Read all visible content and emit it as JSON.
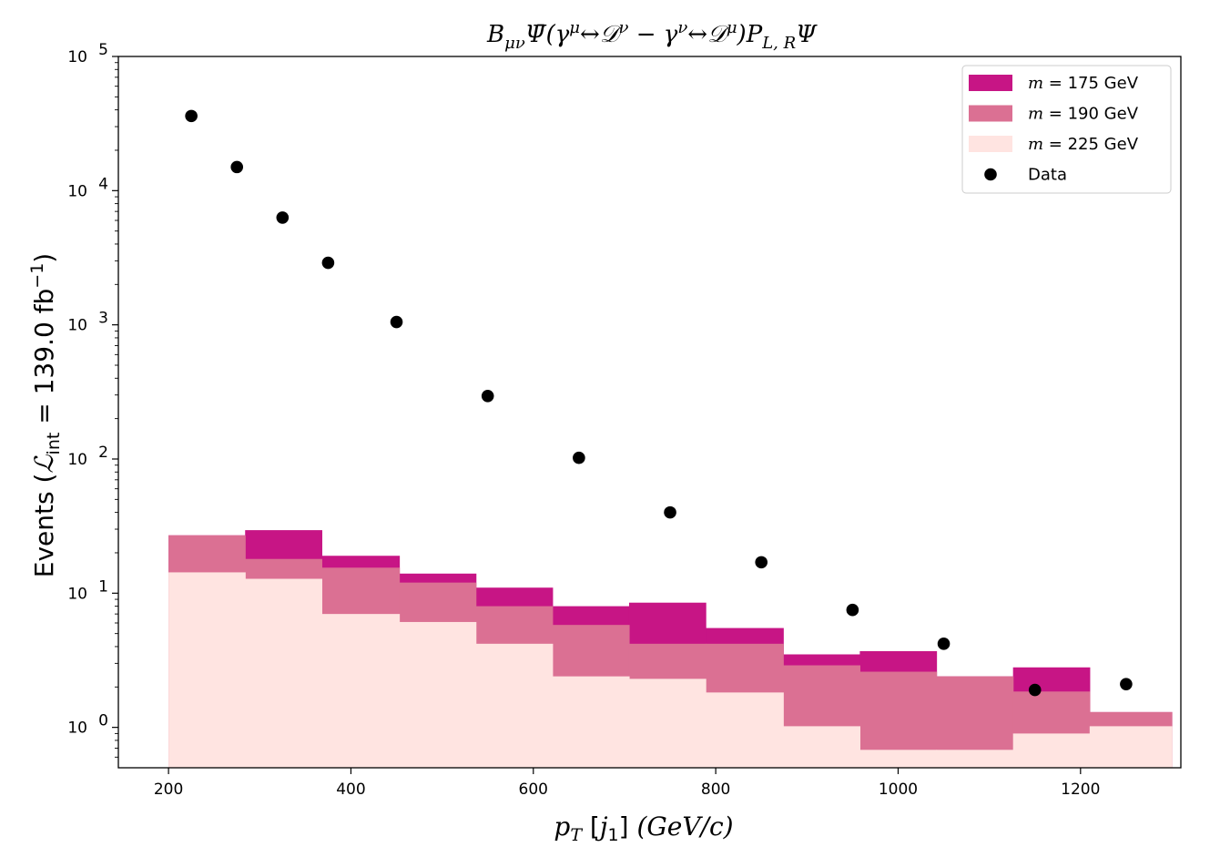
{
  "chart_data": {
    "type": "bar",
    "title": "BμνΨ̄(γμ↔𝒟ν − γν↔𝒟μ)P_L,R Ψ",
    "xlabel": "p_T [j_1] (GeV/c)",
    "ylabel": "Events (ℒint = 139.0 fb⁻¹)",
    "xlim": [
      145,
      1310
    ],
    "ylim": [
      0.5,
      100000
    ],
    "yscale": "log",
    "x_ticks": [
      "200",
      "400",
      "600",
      "800",
      "1000",
      "1200"
    ],
    "y_ticks": [
      {
        "base": "10",
        "exp": "0"
      },
      {
        "base": "10",
        "exp": "1"
      },
      {
        "base": "10",
        "exp": "2"
      },
      {
        "base": "10",
        "exp": "3"
      },
      {
        "base": "10",
        "exp": "4"
      },
      {
        "base": "10",
        "exp": "5"
      }
    ],
    "bin_edges": [
      200,
      284,
      368,
      453,
      537,
      621,
      705,
      789,
      874,
      958,
      1042,
      1126,
      1210,
      1300
    ],
    "series": [
      {
        "name": "m = 175 GeV",
        "kind": "step",
        "color": "#c71585",
        "values": [
          27,
          29.5,
          19,
          14,
          11,
          8,
          8.5,
          5.5,
          3.5,
          3.7,
          2.4,
          2.8,
          1.3
        ]
      },
      {
        "name": "m = 190 GeV",
        "kind": "step",
        "color": "#db7093",
        "values": [
          27,
          18,
          15.5,
          12,
          8,
          5.8,
          4.2,
          4.2,
          2.9,
          2.6,
          2.4,
          1.85,
          1.3
        ]
      },
      {
        "name": "m = 225 GeV",
        "kind": "step",
        "color": "#ffe4e1",
        "values": [
          14.3,
          12.8,
          7.0,
          6.1,
          4.2,
          2.4,
          2.3,
          1.82,
          1.02,
          0.68,
          0.68,
          0.9,
          1.02
        ]
      },
      {
        "name": "Data",
        "kind": "points",
        "color": "#000000",
        "x": [
          225,
          275,
          325,
          375,
          450,
          550,
          650,
          750,
          850,
          950,
          1050,
          1150,
          1250
        ],
        "values": [
          36000,
          15000,
          6300,
          2900,
          1050,
          295,
          102,
          40,
          17,
          7.5,
          4.2,
          1.9,
          2.1
        ]
      }
    ],
    "legend_position": "top-right",
    "legend": [
      {
        "m": "m",
        "eq": " = ",
        "label": "175 GeV",
        "swatch": "#c71585",
        "kind": "patch"
      },
      {
        "m": "m",
        "eq": " = ",
        "label": "190 GeV",
        "swatch": "#db7093",
        "kind": "patch"
      },
      {
        "m": "m",
        "eq": " = ",
        "label": "225 GeV",
        "swatch": "#ffe4e1",
        "kind": "patch"
      },
      {
        "m": "",
        "eq": "",
        "label": "Data",
        "swatch": "#000000",
        "kind": "marker"
      }
    ]
  }
}
